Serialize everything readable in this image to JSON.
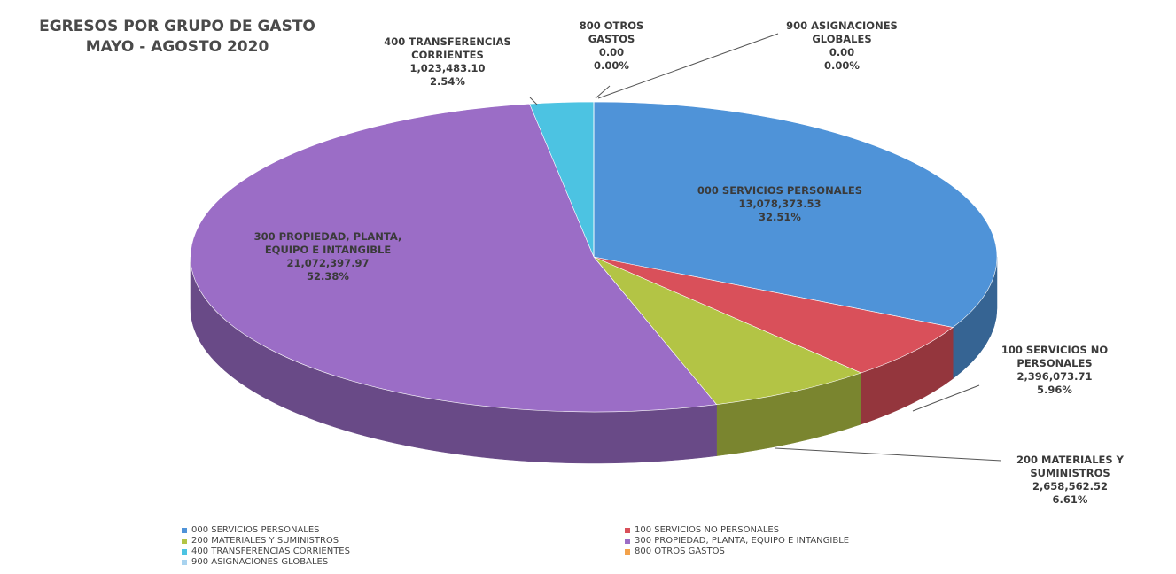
{
  "chart_data": {
    "type": "pie3d",
    "title": "EGRESOS POR GRUPO DE GASTO",
    "subtitle": "MAYO - AGOSTO 2020",
    "categories": [
      "000 SERVICIOS PERSONALES",
      "100 SERVICIOS NO PERSONALES",
      "200 MATERIALES Y SUMINISTROS",
      "300 PROPIEDAD, PLANTA, EQUIPO E INTANGIBLE",
      "400 TRANSFERENCIAS CORRIENTES",
      "800 OTROS GASTOS",
      "900 ASIGNACIONES GLOBALES"
    ],
    "values": [
      13078373.53,
      2396073.71,
      2658562.52,
      21072397.97,
      1023483.1,
      0,
      0
    ],
    "value_labels": [
      "13,078,373.53",
      "2,396,073.71",
      "2,658,562.52",
      "21,072,397.97",
      "1,023,483.10",
      "0.00",
      "0.00"
    ],
    "percentages": [
      32.51,
      5.96,
      6.61,
      52.38,
      2.54,
      0,
      0
    ],
    "percentage_labels": [
      "32.51%",
      "5.96%",
      "6.61%",
      "52.38%",
      "2.54%",
      "0.00%",
      "0.00%"
    ],
    "colors": [
      "#4f93d8",
      "#d9505a",
      "#b3c445",
      "#9b6dc6",
      "#4cc3e2",
      "#f3a24b",
      "#a9d3ef"
    ],
    "legend": "bottom"
  }
}
